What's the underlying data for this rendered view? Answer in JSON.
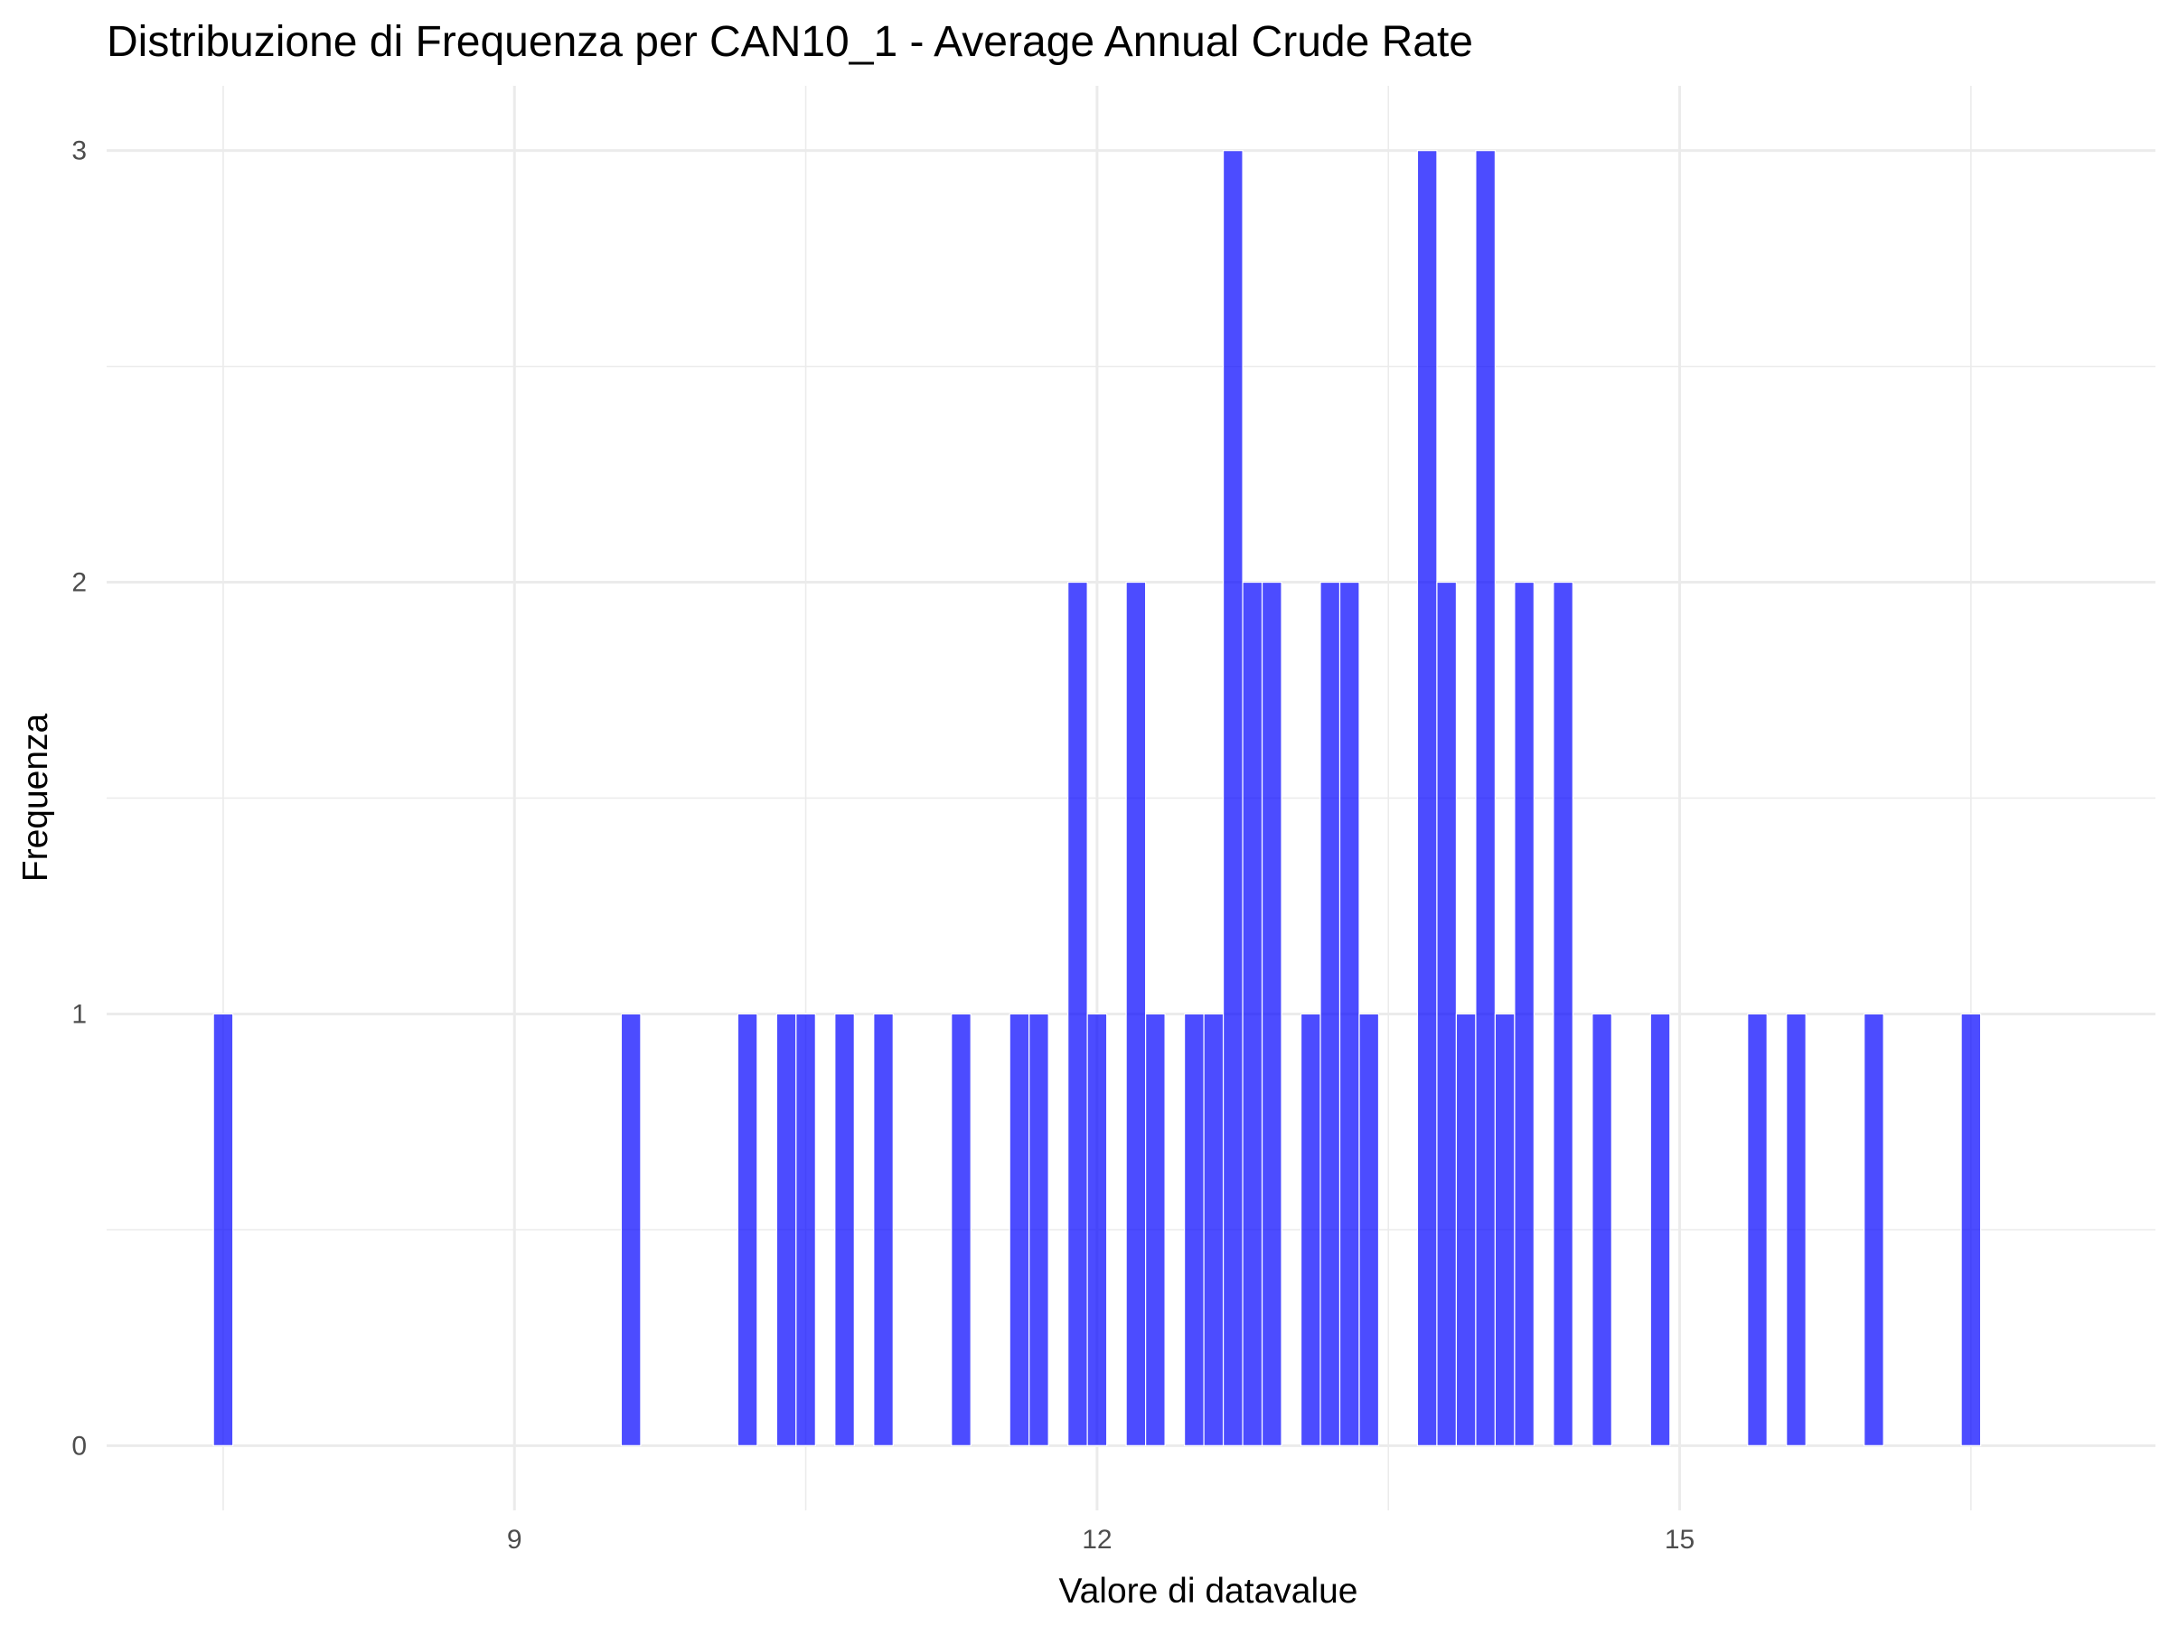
{
  "chart_data": {
    "type": "bar",
    "subtype": "histogram",
    "title": "Distribuzione di Frequenza per CAN10_1 - Average Annual Crude Rate",
    "xlabel": "Valore di datavalue",
    "ylabel": "Frequenza",
    "xlim": [
      6.9,
      17.45
    ],
    "ylim": [
      -0.15,
      3.15
    ],
    "x_ticks": [
      9,
      12,
      15
    ],
    "y_ticks": [
      0,
      1,
      2,
      3
    ],
    "grid": true,
    "legend": "none",
    "bar_color": "#0000ff",
    "bar_opacity": 0.7,
    "bin_width": 0.1,
    "bins": [
      {
        "x": 7.5,
        "count": 1
      },
      {
        "x": 9.6,
        "count": 1
      },
      {
        "x": 10.2,
        "count": 1
      },
      {
        "x": 10.4,
        "count": 1
      },
      {
        "x": 10.5,
        "count": 1
      },
      {
        "x": 10.7,
        "count": 1
      },
      {
        "x": 10.9,
        "count": 1
      },
      {
        "x": 11.3,
        "count": 1
      },
      {
        "x": 11.6,
        "count": 1
      },
      {
        "x": 11.7,
        "count": 1
      },
      {
        "x": 11.9,
        "count": 2
      },
      {
        "x": 12.0,
        "count": 1
      },
      {
        "x": 12.2,
        "count": 2
      },
      {
        "x": 12.3,
        "count": 1
      },
      {
        "x": 12.5,
        "count": 1
      },
      {
        "x": 12.6,
        "count": 1
      },
      {
        "x": 12.7,
        "count": 3
      },
      {
        "x": 12.8,
        "count": 2
      },
      {
        "x": 12.9,
        "count": 2
      },
      {
        "x": 13.1,
        "count": 1
      },
      {
        "x": 13.2,
        "count": 2
      },
      {
        "x": 13.3,
        "count": 2
      },
      {
        "x": 13.4,
        "count": 1
      },
      {
        "x": 13.7,
        "count": 3
      },
      {
        "x": 13.8,
        "count": 2
      },
      {
        "x": 13.9,
        "count": 1
      },
      {
        "x": 14.0,
        "count": 3
      },
      {
        "x": 14.1,
        "count": 1
      },
      {
        "x": 14.2,
        "count": 2
      },
      {
        "x": 14.4,
        "count": 2
      },
      {
        "x": 14.6,
        "count": 1
      },
      {
        "x": 14.9,
        "count": 1
      },
      {
        "x": 15.4,
        "count": 1
      },
      {
        "x": 15.6,
        "count": 1
      },
      {
        "x": 16.0,
        "count": 1
      },
      {
        "x": 16.5,
        "count": 1
      }
    ]
  }
}
